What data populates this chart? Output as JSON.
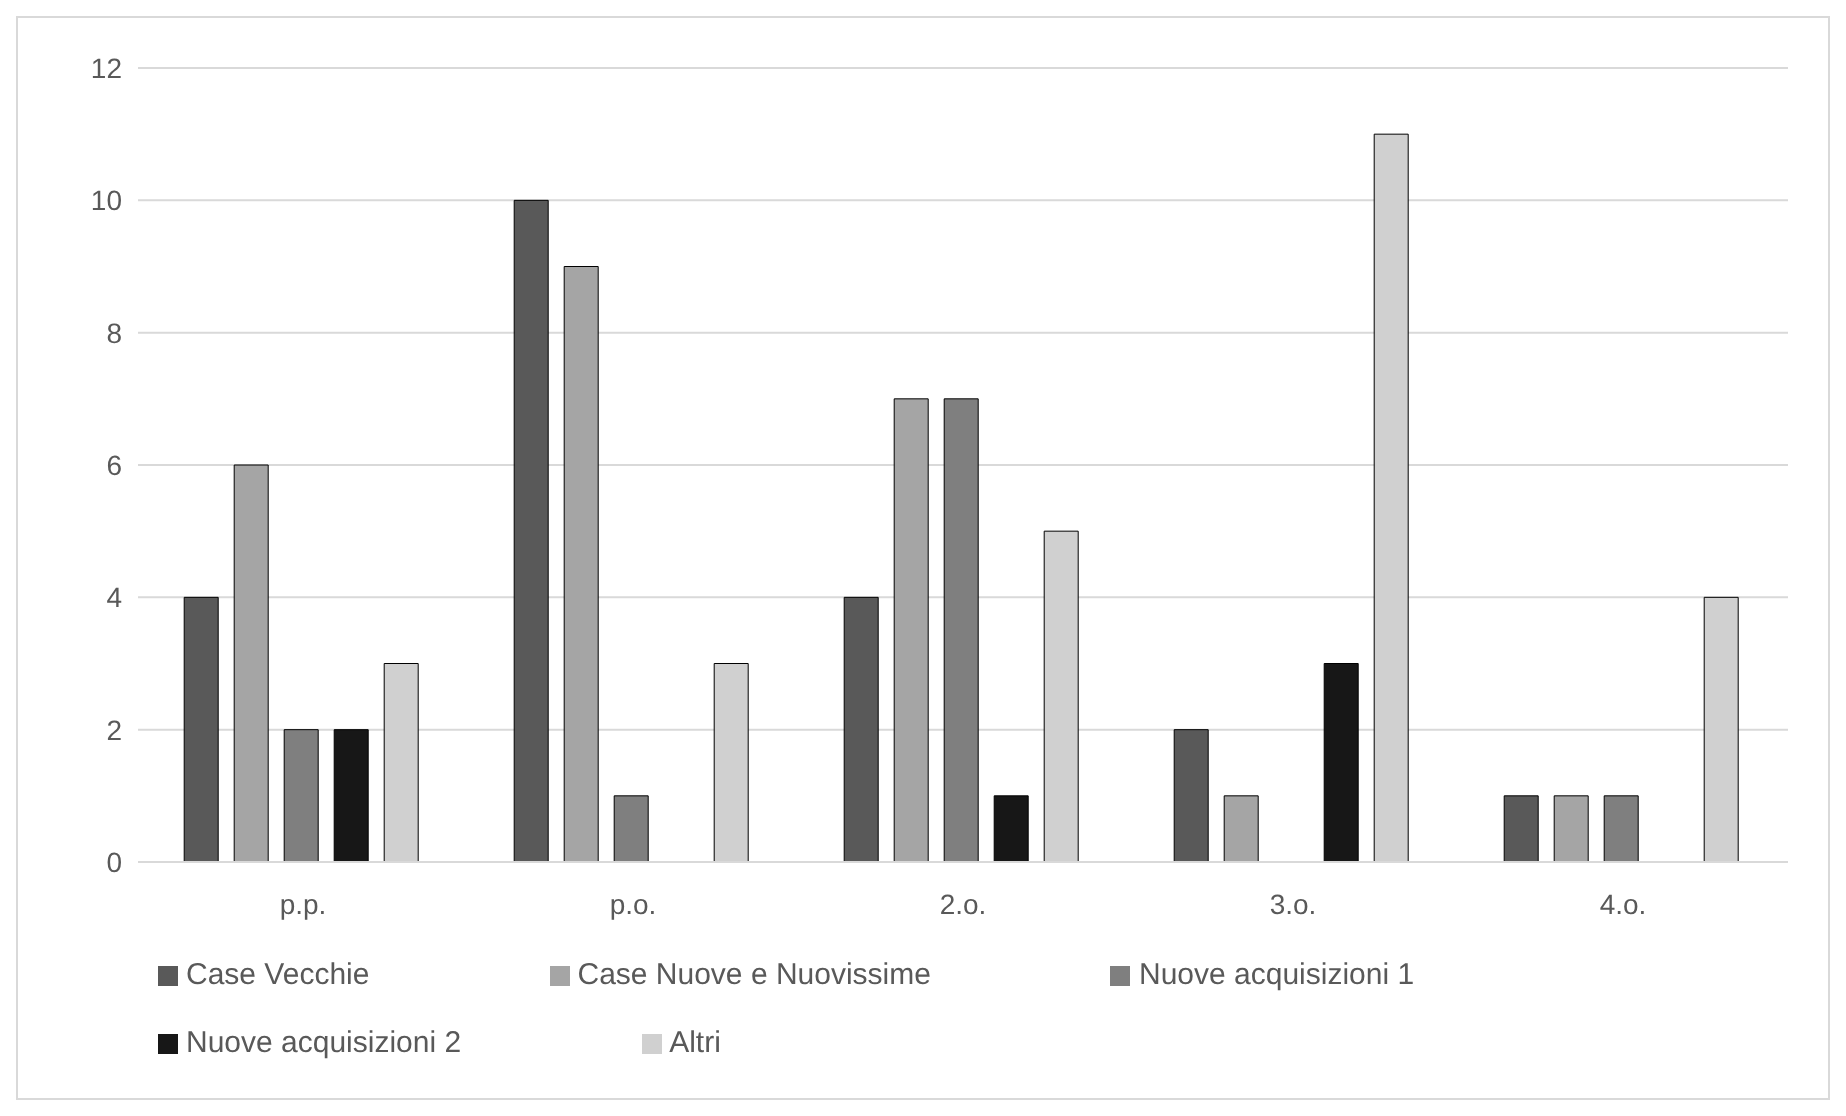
{
  "chart_data": {
    "type": "bar",
    "categories": [
      "p.p.",
      "p.o.",
      "2.o.",
      "3.o.",
      "4.o."
    ],
    "series": [
      {
        "name": "Case Vecchie",
        "color": "#595959",
        "values": [
          4,
          10,
          4,
          2,
          1
        ]
      },
      {
        "name": "Case Nuove e Nuovissime",
        "color": "#a5a5a5",
        "values": [
          6,
          9,
          7,
          1,
          1
        ]
      },
      {
        "name": "Nuove acquisizioni 1",
        "color": "#7f7f7f",
        "values": [
          2,
          1,
          7,
          0,
          1
        ]
      },
      {
        "name": "Nuove acquisizioni 2",
        "color": "#171717",
        "values": [
          2,
          0,
          1,
          3,
          0
        ]
      },
      {
        "name": "Altri",
        "color": "#d0d0d0",
        "values": [
          3,
          3,
          5,
          11,
          4
        ]
      }
    ],
    "ylim": [
      0,
      12
    ],
    "yticks": [
      0,
      2,
      4,
      6,
      8,
      10,
      12
    ],
    "grid": "y",
    "legend": "bottom"
  }
}
